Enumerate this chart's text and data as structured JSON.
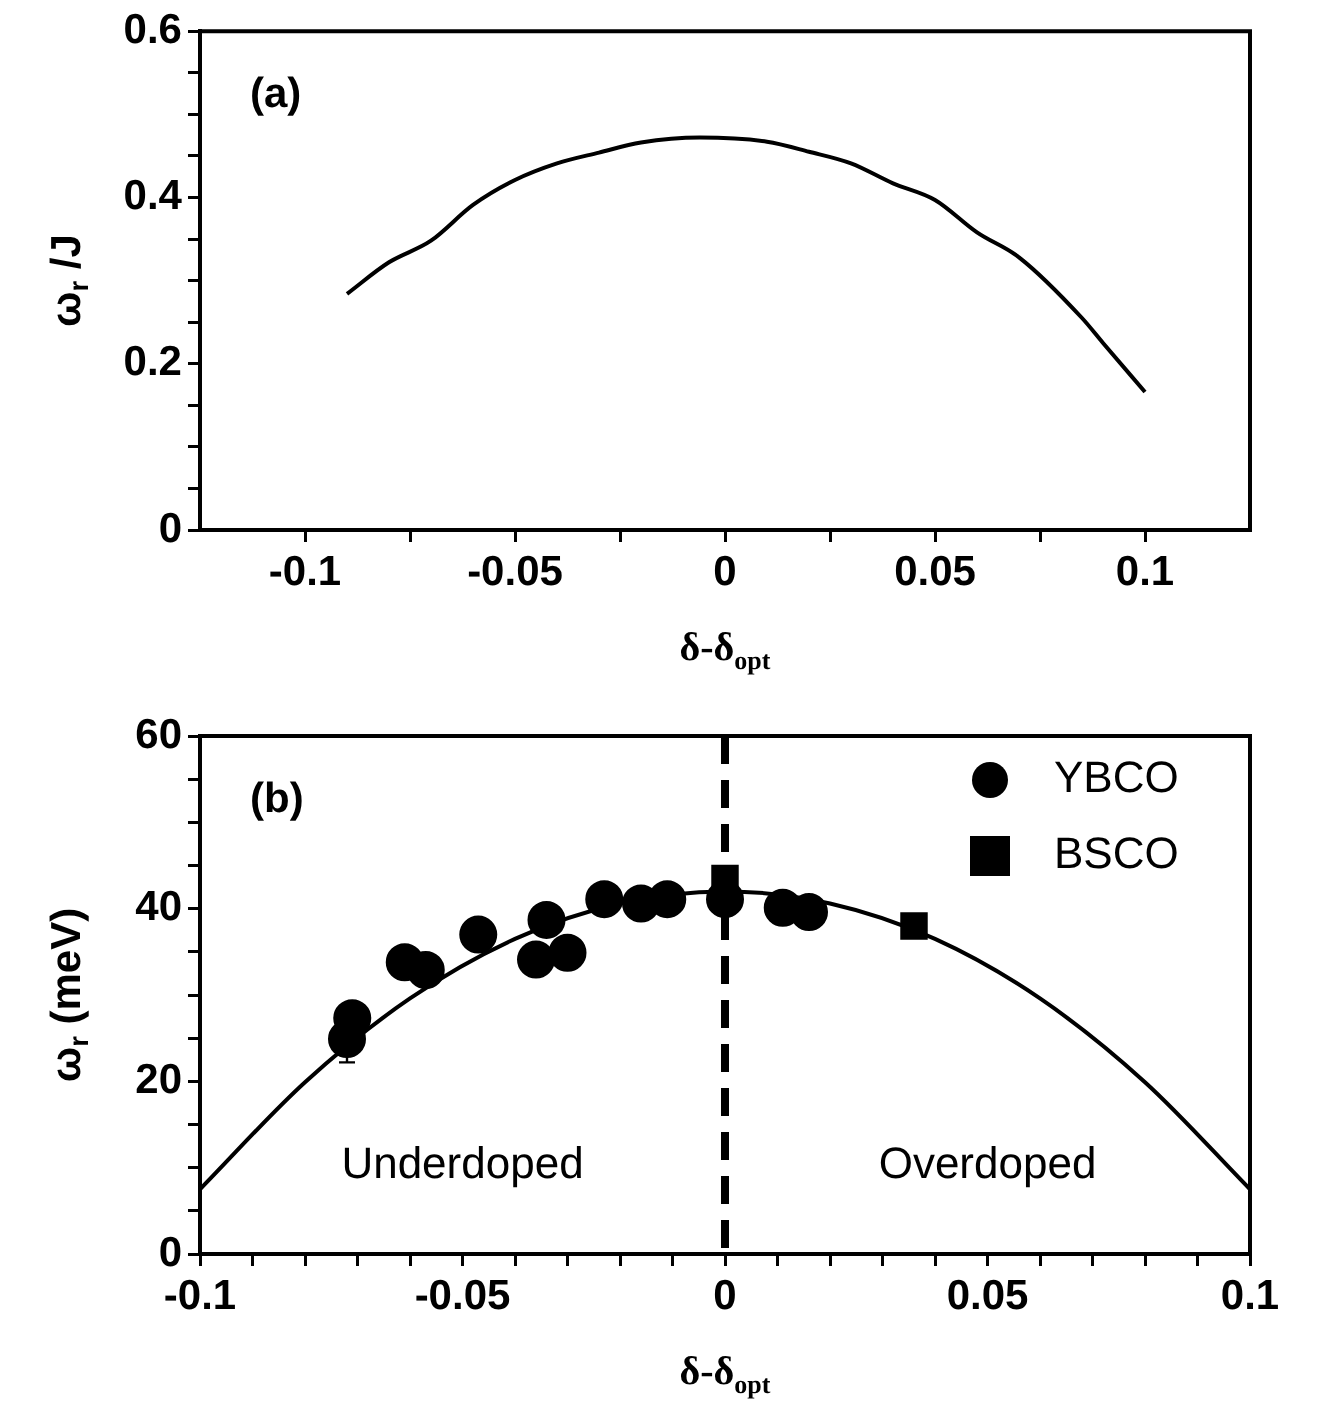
{
  "chart_data": [
    {
      "type": "line",
      "xlabel": "δ-δ$_{opt}$",
      "ylabel": "ω$_{r}$ /J",
      "xlim": [
        -0.125,
        0.125
      ],
      "ylim": [
        0,
        0.6
      ],
      "xticks": [
        -0.1,
        {
          "value": -0.075,
          "label": null
        },
        -0.05,
        {
          "value": -0.025,
          "label": null
        },
        0,
        {
          "value": 0.025,
          "label": null
        },
        0.05,
        {
          "value": 0.075,
          "label": null
        },
        0.1
      ],
      "yticks": [
        0,
        {
          "value": 0.05,
          "label": null
        },
        {
          "value": 0.1,
          "label": null
        },
        {
          "value": 0.15,
          "label": null
        },
        0.2,
        {
          "value": 0.25,
          "label": null
        },
        {
          "value": 0.3,
          "label": null
        },
        {
          "value": 0.35,
          "label": null
        },
        0.4,
        {
          "value": 0.45,
          "label": null
        },
        {
          "value": 0.5,
          "label": null
        },
        {
          "value": 0.55,
          "label": null
        },
        0.6
      ],
      "annotations": [
        "(a)"
      ],
      "series": [
        {
          "color": "#000000",
          "x": [
            -0.09,
            -0.08,
            -0.07,
            -0.06,
            -0.05,
            -0.04,
            -0.03,
            -0.02,
            -0.006,
            0.01,
            0.02,
            0.03,
            0.04,
            0.05,
            0.06,
            0.07,
            0.085,
            0.09,
            0.1
          ],
          "values": [
            0.284,
            0.322,
            0.348,
            0.391,
            0.421,
            0.441,
            0.454,
            0.466,
            0.472,
            0.467,
            0.455,
            0.441,
            0.417,
            0.397,
            0.358,
            0.328,
            0.255,
            0.225,
            0.166
          ]
        }
      ]
    },
    {
      "type": "scatter",
      "xlabel": "δ-δ$_{opt}$",
      "ylabel": "ω$_{r}$ (meV)",
      "xlim": [
        -0.1,
        0.1
      ],
      "ylim": [
        0,
        60
      ],
      "legend": "top right",
      "xticks": [
        -0.1,
        {
          "value": -0.09,
          "label": null
        },
        {
          "value": -0.08,
          "label": null
        },
        {
          "value": -0.07,
          "label": null
        },
        {
          "value": -0.06,
          "label": null
        },
        -0.05,
        {
          "value": -0.04,
          "label": null
        },
        {
          "value": -0.03,
          "label": null
        },
        {
          "value": -0.02,
          "label": null
        },
        {
          "value": -0.01,
          "label": null
        },
        0,
        {
          "value": 0.01,
          "label": null
        },
        {
          "value": 0.02,
          "label": null
        },
        {
          "value": 0.03,
          "label": null
        },
        {
          "value": 0.04,
          "label": null
        },
        0.05,
        {
          "value": 0.06,
          "label": null
        },
        {
          "value": 0.07,
          "label": null
        },
        {
          "value": 0.08,
          "label": null
        },
        {
          "value": 0.09,
          "label": null
        },
        0.1
      ],
      "yticks": [
        0,
        {
          "value": 5,
          "label": null
        },
        {
          "value": 10,
          "label": null
        },
        {
          "value": 15,
          "label": null
        },
        20,
        {
          "value": 25,
          "label": null
        },
        {
          "value": 30,
          "label": null
        },
        {
          "value": 35,
          "label": null
        },
        40,
        {
          "value": 45,
          "label": null
        },
        {
          "value": 50,
          "label": null
        },
        {
          "value": 55,
          "label": null
        },
        60
      ],
      "ref_lines": [
        {
          "axis": "x",
          "value": 0,
          "color": "#000000",
          "line_style": "dashed"
        }
      ],
      "annotations": [
        "(b)",
        "Underdoped",
        "Overdoped"
      ],
      "series": [
        {
          "type": "line",
          "color": "#000000",
          "x": [
            -0.1,
            -0.08,
            -0.06,
            -0.04,
            -0.02,
            0,
            0.02,
            0.04,
            0.06,
            0.08,
            0.1
          ],
          "values": [
            7.5,
            19.9,
            29.6,
            36.5,
            40.6,
            42,
            40.6,
            36.5,
            29.6,
            19.9,
            7.5
          ]
        },
        {
          "name": "YBCO",
          "marker": "circle",
          "color": "#000000",
          "x": [
            -0.072,
            -0.071,
            -0.061,
            -0.057,
            -0.047,
            -0.034,
            -0.036,
            -0.03,
            -0.023,
            -0.016,
            -0.011,
            0,
            0.011,
            0.016
          ],
          "values": [
            24.9,
            27.3,
            33.8,
            32.9,
            37,
            38.7,
            34.1,
            34.9,
            41.1,
            40.6,
            41.1,
            41.1,
            40.1,
            39.6
          ],
          "errors": [
            2.7,
            null,
            null,
            null,
            null,
            null,
            null,
            null,
            null,
            null,
            null,
            null,
            null,
            null
          ]
        },
        {
          "name": "BSCO",
          "marker": "square",
          "color": "#000000",
          "x": [
            0,
            0.036
          ],
          "values": [
            43.5,
            38
          ]
        }
      ]
    }
  ]
}
